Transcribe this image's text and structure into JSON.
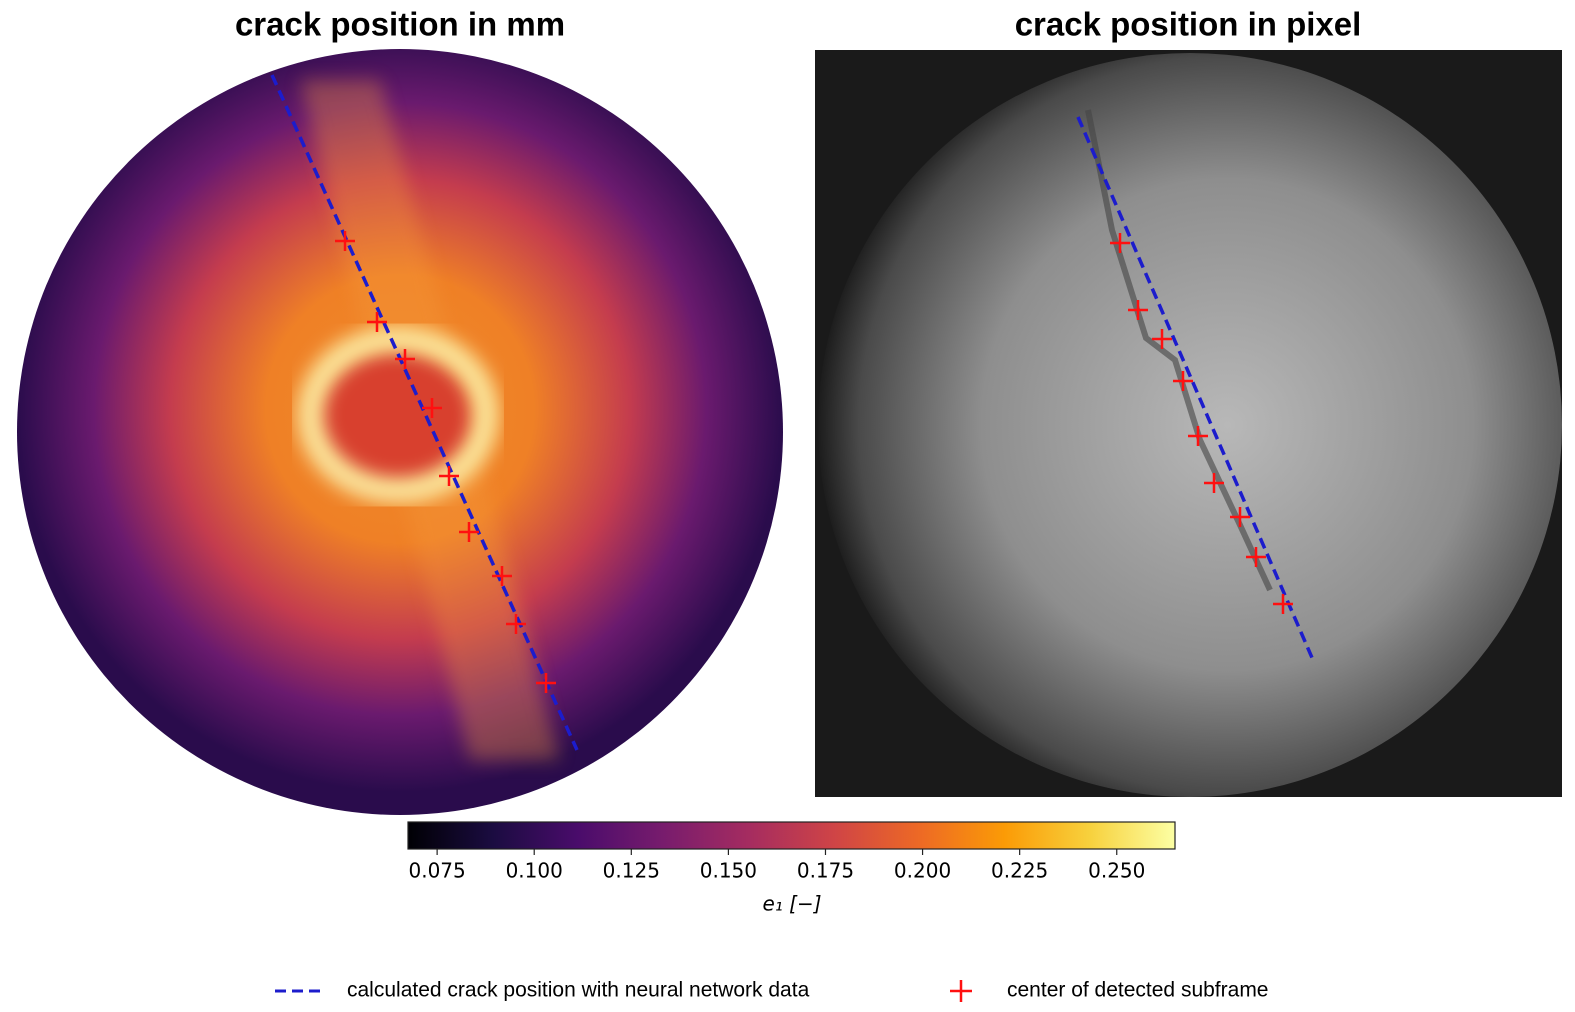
{
  "panels": [
    {
      "title": "crack position in mm"
    },
    {
      "title": "crack position in pixel"
    }
  ],
  "colorbar": {
    "label": "e₁ [−]",
    "colormap": "inferno",
    "lim": [
      0.0675,
      0.265
    ],
    "ticks": [
      0.075,
      {
        "value": 0.1,
        "label": "0.100"
      },
      0.125,
      {
        "value": 0.15,
        "label": "0.150"
      },
      0.175,
      {
        "value": 0.2,
        "label": "0.200"
      },
      0.225,
      {
        "value": 0.25,
        "label": "0.250"
      }
    ]
  },
  "legend": [
    {
      "label": "calculated crack position with neural network data",
      "color": "#1c1ccc",
      "style": "dashed"
    },
    {
      "label": "center of detected subframe",
      "color": "#ff1010",
      "style": "plus"
    }
  ]
}
